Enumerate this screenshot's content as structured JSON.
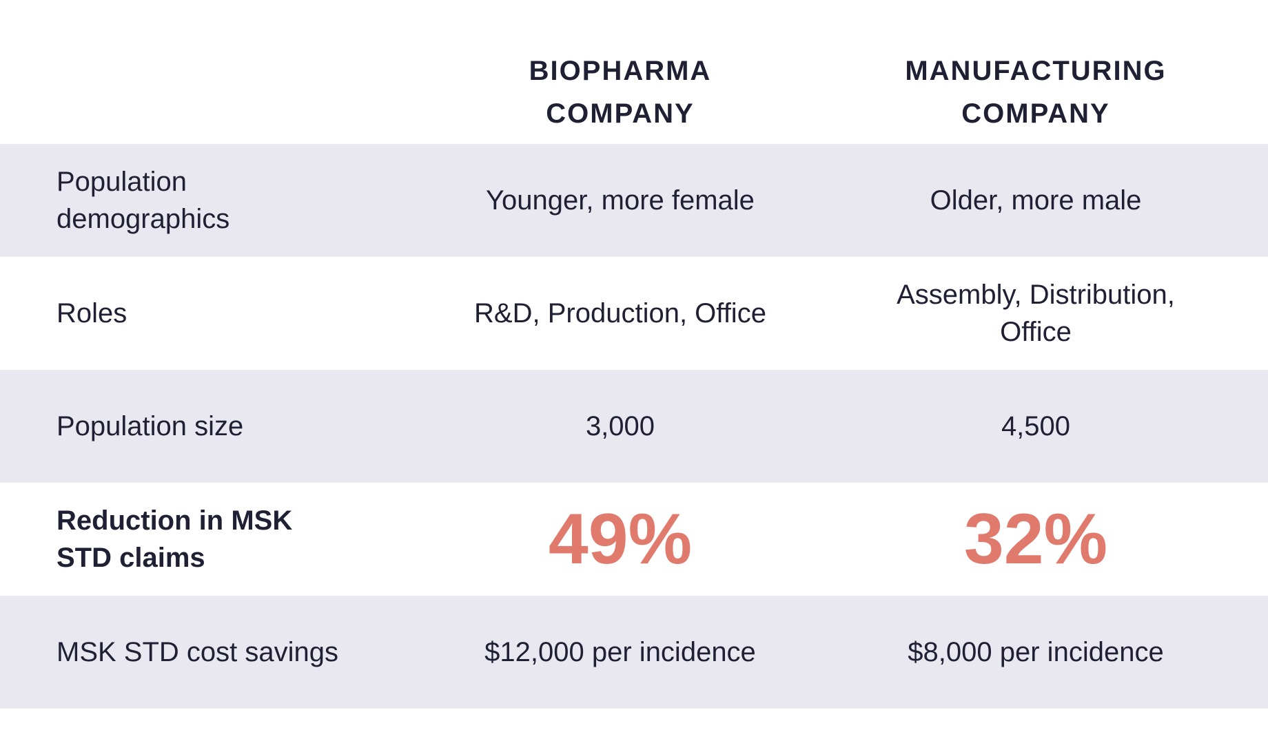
{
  "columns": {
    "biopharma": "BIOPHARMA\nCOMPANY",
    "manufacturing": "MANUFACTURING\nCOMPANY"
  },
  "rows": [
    {
      "label": "Population\ndemographics",
      "biopharma": "Younger, more female",
      "manufacturing": "Older, more male"
    },
    {
      "label": "Roles",
      "biopharma": "R&D, Production, Office",
      "manufacturing": "Assembly, Distribution,\nOffice"
    },
    {
      "label": "Population size",
      "biopharma": "3,000",
      "manufacturing": "4,500"
    },
    {
      "label": "Reduction in MSK\nSTD claims",
      "biopharma": "49%",
      "manufacturing": "32%"
    },
    {
      "label": "MSK STD cost savings",
      "biopharma": "$12,000 per incidence",
      "manufacturing": "$8,000 per incidence"
    }
  ],
  "colors": {
    "text": "#1f2033",
    "highlight": "#e07a6c",
    "row_shade": "#e9e8f0",
    "background": "#ffffff"
  }
}
